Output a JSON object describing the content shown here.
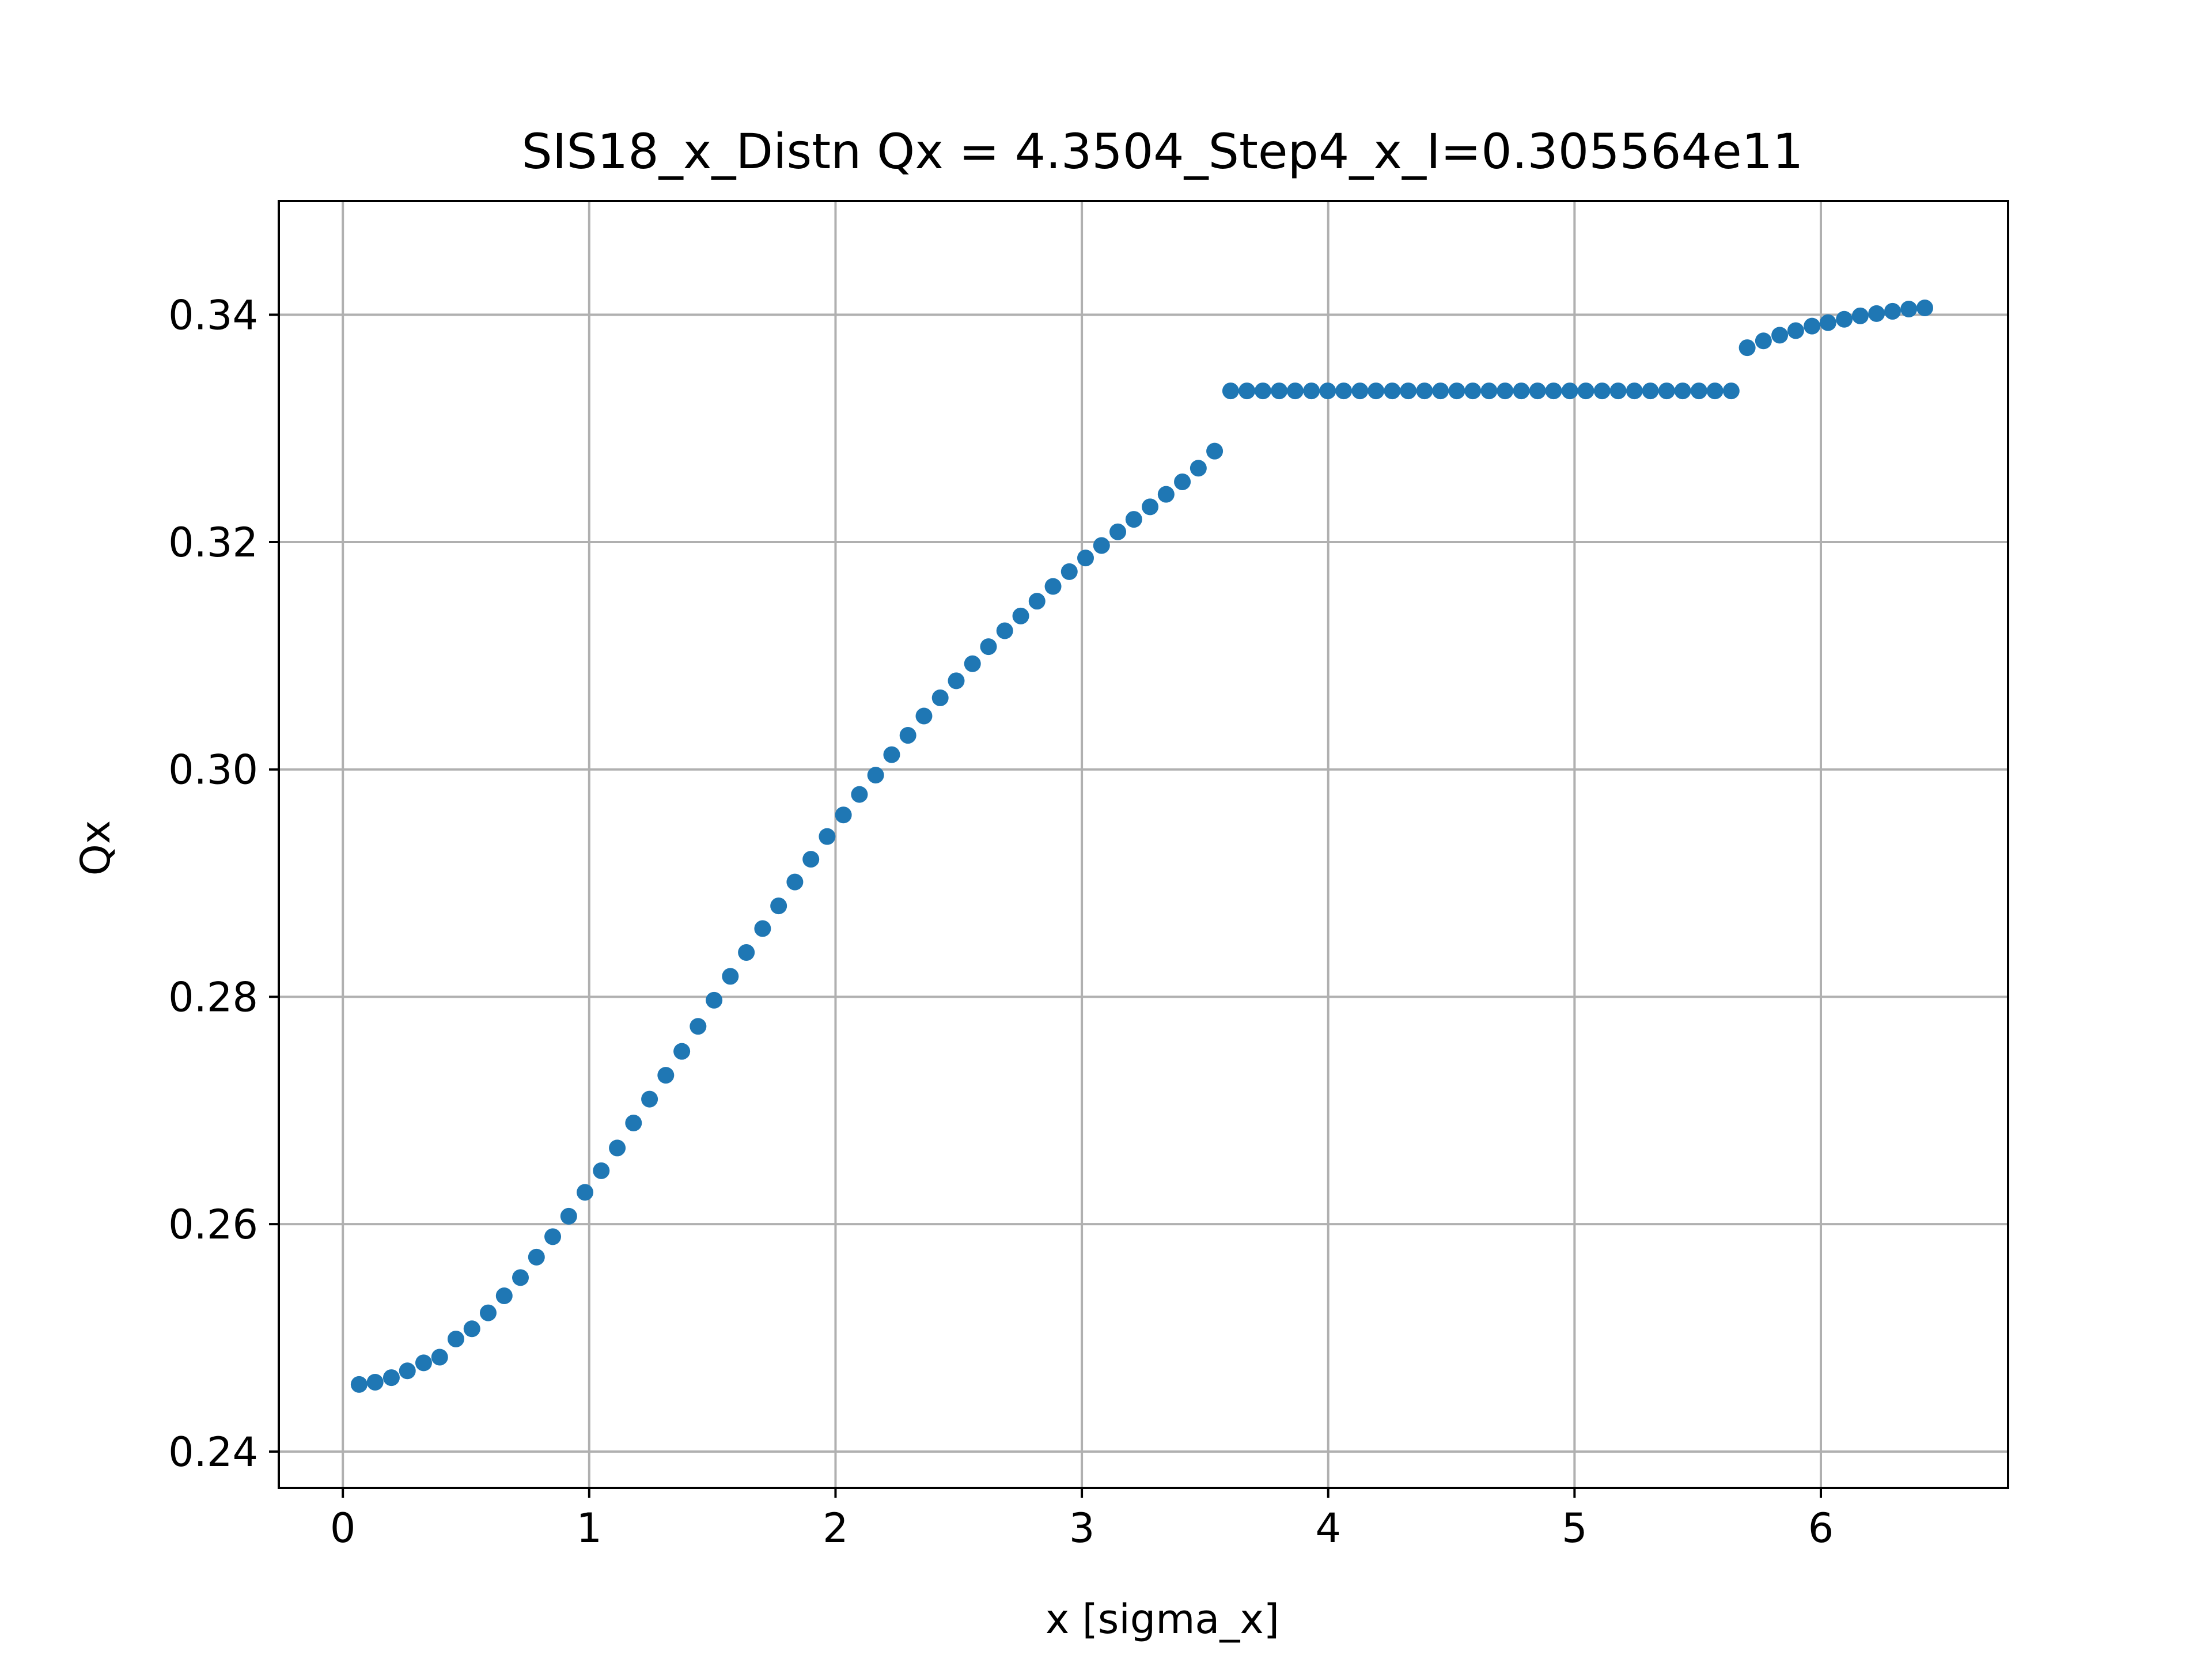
{
  "chart_data": {
    "type": "scatter",
    "title": "SIS18_x_Distn Qx = 4.3504_Step4_x_I=0.305564e11",
    "xlabel": "x [sigma_x]",
    "ylabel": "Qx",
    "xlim": [
      -0.26,
      6.76
    ],
    "ylim": [
      0.2368,
      0.35
    ],
    "xticks": [
      0,
      1,
      2,
      3,
      4,
      5,
      6
    ],
    "xtick_labels": [
      "0",
      "1",
      "2",
      "3",
      "4",
      "5",
      "6"
    ],
    "yticks": [
      0.24,
      0.26,
      0.28,
      0.3,
      0.32,
      0.34
    ],
    "ytick_labels": [
      "0.24",
      "0.26",
      "0.28",
      "0.30",
      "0.32",
      "0.34"
    ],
    "grid": true,
    "legend": "none",
    "marker_color": "#1f77b4",
    "series": [
      {
        "x": [
          0.066,
          0.131,
          0.197,
          0.262,
          0.328,
          0.393,
          0.459,
          0.524,
          0.59,
          0.655,
          0.721,
          0.786,
          0.852,
          0.917,
          0.983,
          1.049,
          1.114,
          1.18,
          1.245,
          1.311,
          1.376,
          1.442,
          1.507,
          1.573,
          1.638,
          1.704,
          1.769,
          1.835,
          1.9,
          1.966,
          2.032,
          2.097,
          2.163,
          2.228,
          2.294,
          2.359,
          2.425,
          2.49,
          2.556,
          2.621,
          2.687,
          2.752,
          2.818,
          2.883,
          2.949,
          3.015,
          3.08,
          3.146,
          3.211,
          3.277,
          3.342,
          3.408,
          3.473,
          3.539,
          3.604,
          3.67,
          3.735,
          3.801,
          3.866,
          3.932,
          3.998,
          4.063,
          4.129,
          4.194,
          4.26,
          4.325,
          4.391,
          4.456,
          4.522,
          4.587,
          4.653,
          4.718,
          4.784,
          4.85,
          4.915,
          4.981,
          5.046,
          5.112,
          5.177,
          5.243,
          5.308,
          5.374,
          5.439,
          5.505,
          5.57,
          5.636,
          5.701,
          5.767,
          5.833,
          5.898,
          5.964,
          6.029,
          6.095,
          6.16,
          6.226,
          6.291,
          6.357,
          6.422
        ],
        "y": [
          0.2459,
          0.2461,
          0.2465,
          0.2471,
          0.2478,
          0.2483,
          0.2499,
          0.2508,
          0.2522,
          0.2537,
          0.2553,
          0.2571,
          0.2589,
          0.2607,
          0.2628,
          0.2647,
          0.2667,
          0.2689,
          0.271,
          0.2731,
          0.2752,
          0.2774,
          0.2797,
          0.2818,
          0.2839,
          0.286,
          0.288,
          0.2901,
          0.2921,
          0.2941,
          0.296,
          0.2978,
          0.2995,
          0.3013,
          0.303,
          0.3047,
          0.3063,
          0.3078,
          0.3093,
          0.3108,
          0.3122,
          0.3135,
          0.3148,
          0.3161,
          0.3174,
          0.3186,
          0.3197,
          0.3209,
          0.322,
          0.3231,
          0.3242,
          0.3253,
          0.3265,
          0.328,
          0.3333,
          0.3333,
          0.3333,
          0.3333,
          0.3333,
          0.3333,
          0.3333,
          0.3333,
          0.3333,
          0.3333,
          0.3333,
          0.3333,
          0.3333,
          0.3333,
          0.3333,
          0.3333,
          0.3333,
          0.3333,
          0.3333,
          0.3333,
          0.3333,
          0.3333,
          0.3333,
          0.3333,
          0.3333,
          0.3333,
          0.3333,
          0.3333,
          0.3333,
          0.3333,
          0.3333,
          0.3333,
          0.3371,
          0.3377,
          0.3382,
          0.3386,
          0.339,
          0.3393,
          0.3396,
          0.3399,
          0.3401,
          0.3403,
          0.3405,
          0.3406
        ]
      }
    ]
  }
}
